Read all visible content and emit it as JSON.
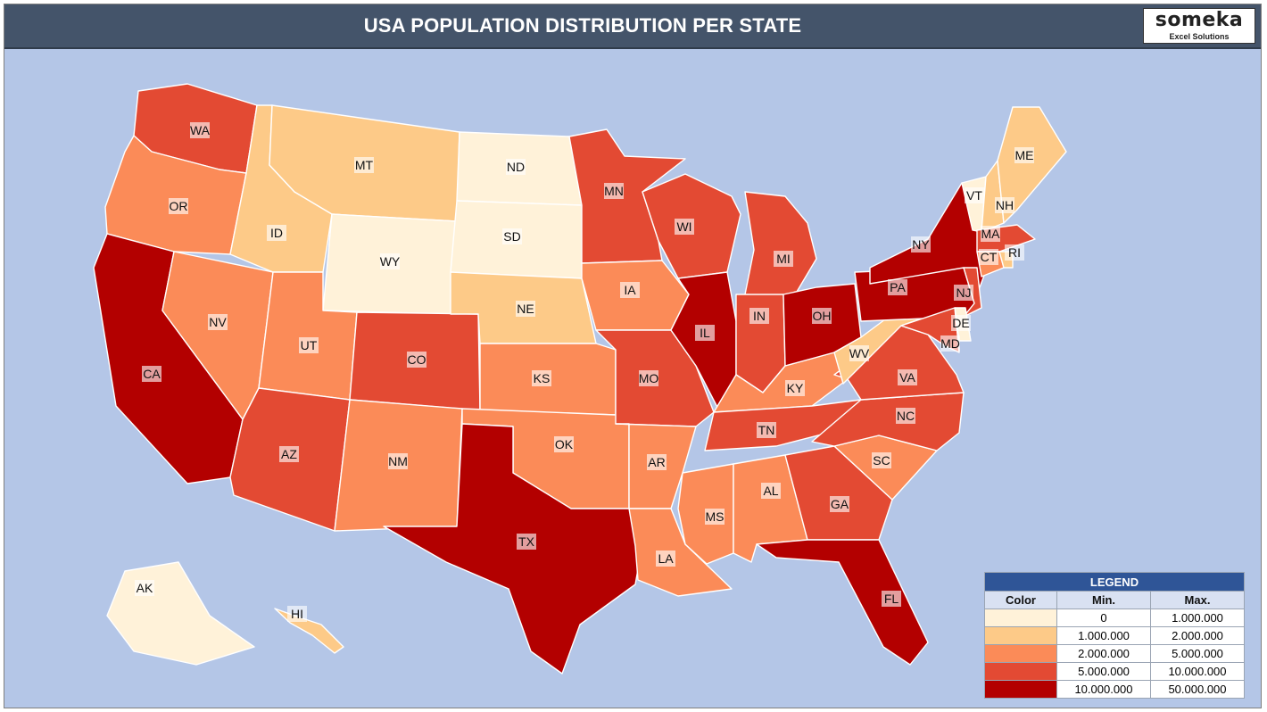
{
  "header": {
    "title": "USA POPULATION DISTRIBUTION PER STATE"
  },
  "logo": {
    "name": "someka",
    "subtitle": "Excel Solutions"
  },
  "legend": {
    "title": "LEGEND",
    "columns": [
      "Color",
      "Min.",
      "Max."
    ],
    "bins": [
      {
        "color": "#fff2d9",
        "min": "0",
        "max": "1.000.000"
      },
      {
        "color": "#fdca88",
        "min": "1.000.000",
        "max": "2.000.000"
      },
      {
        "color": "#fb8b58",
        "min": "2.000.000",
        "max": "5.000.000"
      },
      {
        "color": "#e34a33",
        "min": "5.000.000",
        "max": "10.000.000"
      },
      {
        "color": "#b30000",
        "min": "10.000.000",
        "max": "50.000.000"
      }
    ]
  },
  "states": {
    "WA": 3,
    "OR": 2,
    "CA": 4,
    "NV": 2,
    "ID": 1,
    "MT": 1,
    "WY": 0,
    "UT": 2,
    "AZ": 3,
    "CO": 3,
    "NM": 2,
    "ND": 0,
    "SD": 0,
    "NE": 1,
    "KS": 2,
    "OK": 2,
    "TX": 4,
    "MN": 3,
    "IA": 2,
    "MO": 3,
    "AR": 2,
    "LA": 2,
    "WI": 3,
    "IL": 4,
    "MS": 2,
    "MI": 3,
    "IN": 3,
    "KY": 2,
    "TN": 3,
    "AL": 2,
    "OH": 4,
    "GA": 3,
    "FL": 4,
    "SC": 2,
    "NC": 3,
    "VA": 3,
    "WV": 1,
    "PA": 4,
    "NY": 4,
    "VT": 0,
    "NH": 1,
    "ME": 1,
    "MA": 3,
    "CT": 2,
    "RI": 1,
    "NJ": 3,
    "DE": 0,
    "MD": 3,
    "AK": 0,
    "HI": 1
  }
}
